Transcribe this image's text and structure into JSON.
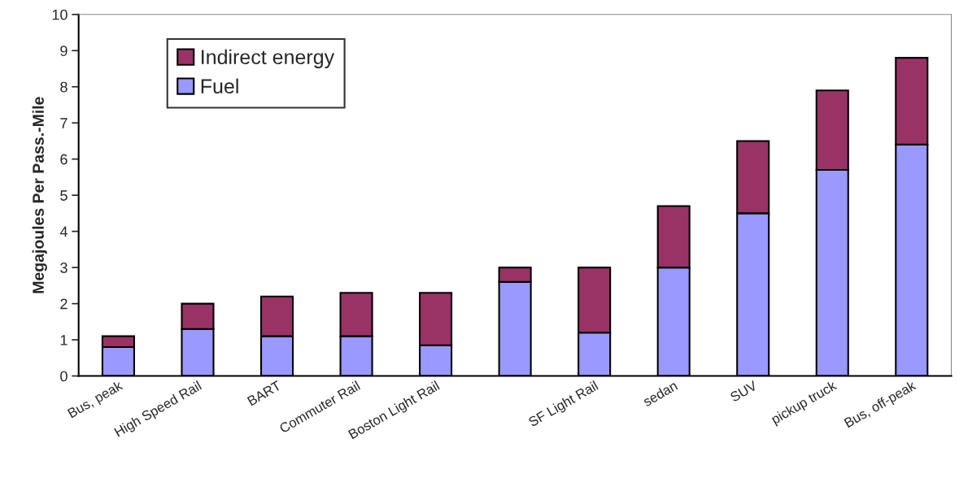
{
  "chart_data": {
    "type": "bar",
    "stacked": true,
    "ylabel": "Megajoules Per Pass.-Mile",
    "categories": [
      "Bus, peak",
      "High Speed Rail",
      "BART",
      "Commuter Rail",
      "Boston Light Rail",
      null,
      "SF Light Rail",
      "sedan",
      "SUV",
      "pickup truck",
      "Bus, off-peak"
    ],
    "series": [
      {
        "name": "Fuel",
        "color": "#9999ff",
        "values": [
          0.8,
          1.3,
          1.1,
          1.1,
          0.85,
          2.6,
          1.2,
          3.0,
          4.5,
          5.7,
          6.4
        ]
      },
      {
        "name": "Indirect energy",
        "color": "#993366",
        "values": [
          0.3,
          0.7,
          1.1,
          1.2,
          1.45,
          0.4,
          1.8,
          1.7,
          2.0,
          2.2,
          2.4
        ]
      }
    ],
    "ylim": [
      0,
      10
    ],
    "yticks": [
      0,
      1,
      2,
      3,
      4,
      5,
      6,
      7,
      8,
      9,
      10
    ],
    "grid": false,
    "legend": "top left"
  }
}
